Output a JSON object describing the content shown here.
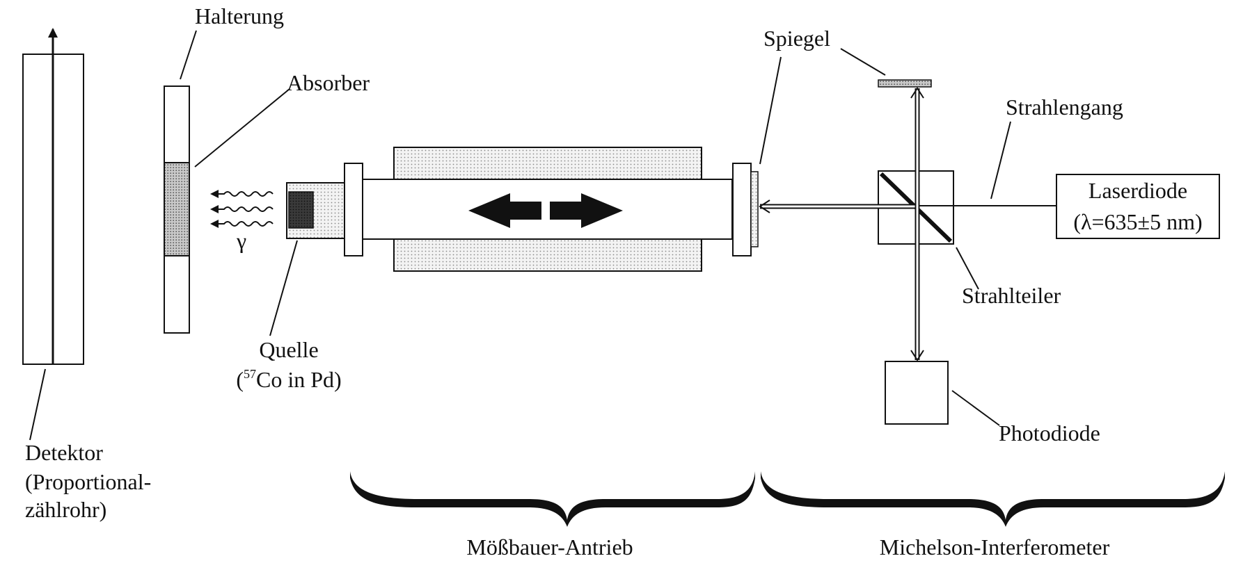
{
  "labels": {
    "halterung": "Halterung",
    "absorber": "Absorber",
    "spiegel": "Spiegel",
    "strahlengang": "Strahlengang",
    "laserdiode_line1": "Laserdiode",
    "laserdiode_line2": "(λ=635±5 nm)",
    "strahlteiler": "Strahlteiler",
    "photodiode": "Photodiode",
    "quelle_line1": "Quelle",
    "quelle_paren_open": "(",
    "quelle_isotope_mass": "57",
    "quelle_rest": "Co in Pd)",
    "gamma": "γ",
    "detektor_line1": "Detektor",
    "detektor_line2": "(Proportional-",
    "detektor_line3": "zählrohr)",
    "mossbauer_antrieb": "Mößbauer-Antrieb",
    "michelson_interferometer": "Michelson-Interferometer"
  },
  "colors": {
    "stroke": "#111111",
    "light_stipple": "#ececec",
    "dark_stipple": "#bdbdbd",
    "source_core": "#333333"
  }
}
